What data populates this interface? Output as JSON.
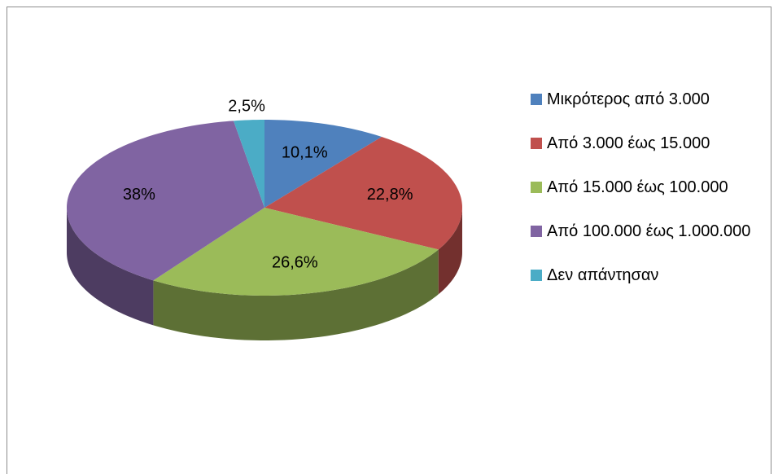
{
  "chart_data": {
    "type": "pie3d",
    "categories": [
      "Μικρότερος από 3.000",
      "Από 3.000 έως 15.000",
      "Από 15.000 έως 100.000",
      "Από 100.000 έως 1.000.000",
      "Δεν απάντησαν"
    ],
    "values": [
      10.1,
      22.8,
      26.6,
      38,
      2.5
    ],
    "value_labels": [
      "10,1%",
      "22,8%",
      "26,6%",
      "38%",
      "2,5%"
    ],
    "colors": [
      "#4f81bd",
      "#c0504d",
      "#9bbb59",
      "#8064a2",
      "#4bacc6"
    ],
    "legend": "right"
  }
}
